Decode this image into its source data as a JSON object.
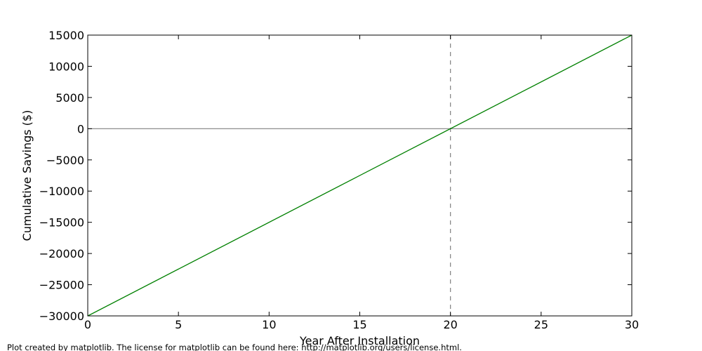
{
  "chart_data": {
    "type": "line",
    "xlabel": "Year After Installation",
    "ylabel": "Cumulative Savings ($)",
    "xlim": [
      0,
      30
    ],
    "ylim": [
      -30000,
      15000
    ],
    "xticks": [
      0,
      5,
      10,
      15,
      20,
      25,
      30
    ],
    "yticks": [
      -30000,
      -25000,
      -20000,
      -15000,
      -10000,
      -5000,
      0,
      5000,
      10000,
      15000
    ],
    "x_tick_labels": [
      "0",
      "5",
      "10",
      "15",
      "20",
      "25",
      "30"
    ],
    "y_tick_labels": [
      "−30000",
      "−25000",
      "−20000",
      "−15000",
      "−10000",
      "−5000",
      "0",
      "5000",
      "10000",
      "15000"
    ],
    "grid": false,
    "series": [
      {
        "color": "#008000",
        "x": [
          0,
          30
        ],
        "y": [
          -30000,
          15000
        ]
      }
    ],
    "reference_lines": [
      {
        "orientation": "horizontal",
        "value": 0,
        "color": "#808080",
        "style": "solid"
      },
      {
        "orientation": "vertical",
        "value": 20,
        "color": "#808080",
        "style": "dashed"
      }
    ]
  },
  "footnote": "Plot created by matplotlib. The license for matplotlib can be found here: http://matplotlib.org/users/license.html."
}
